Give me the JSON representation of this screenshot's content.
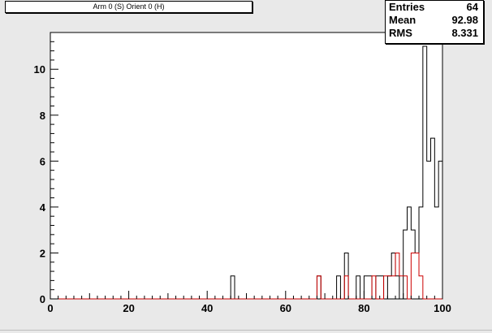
{
  "histogram": {
    "title": "Arm 0 (S) Orient 0 (H)"
  },
  "stats": {
    "entries_label": "Entries",
    "entries_value": "64",
    "mean_label": "Mean",
    "mean_value": "92.98",
    "rms_label": "RMS",
    "rms_value": "8.331"
  },
  "chart_data": {
    "type": "histogram",
    "title": "Arm 0 (S) Orient 0 (H)",
    "xlim": [
      0,
      100
    ],
    "ylim": [
      0,
      11.6
    ],
    "x_ticks": [
      "0",
      "20",
      "40",
      "60",
      "80",
      "100"
    ],
    "y_ticks": [
      "0",
      "2",
      "4",
      "6",
      "8",
      "10"
    ],
    "bin_width": 1,
    "series": [
      {
        "color": "#000000",
        "bins": [
          {
            "x": 46,
            "y": 1
          },
          {
            "x": 68,
            "y": 1
          },
          {
            "x": 73,
            "y": 1
          },
          {
            "x": 75,
            "y": 2
          },
          {
            "x": 78,
            "y": 1
          },
          {
            "x": 80,
            "y": 1
          },
          {
            "x": 81,
            "y": 1
          },
          {
            "x": 83,
            "y": 1
          },
          {
            "x": 84,
            "y": 1
          },
          {
            "x": 86,
            "y": 1
          },
          {
            "x": 87,
            "y": 2
          },
          {
            "x": 88,
            "y": 1
          },
          {
            "x": 90,
            "y": 3
          },
          {
            "x": 91,
            "y": 4
          },
          {
            "x": 92,
            "y": 3
          },
          {
            "x": 93,
            "y": 2
          },
          {
            "x": 94,
            "y": 4
          },
          {
            "x": 95,
            "y": 11
          },
          {
            "x": 96,
            "y": 6
          },
          {
            "x": 97,
            "y": 7
          },
          {
            "x": 98,
            "y": 4
          },
          {
            "x": 99,
            "y": 6
          }
        ]
      },
      {
        "color": "#cc0000",
        "bins": [
          {
            "x": 68,
            "y": 1
          },
          {
            "x": 75,
            "y": 1
          },
          {
            "x": 82,
            "y": 1
          },
          {
            "x": 85,
            "y": 1
          },
          {
            "x": 86,
            "y": 1
          },
          {
            "x": 87,
            "y": 1
          },
          {
            "x": 88,
            "y": 2
          },
          {
            "x": 89,
            "y": 1
          },
          {
            "x": 90,
            "y": 1
          },
          {
            "x": 92,
            "y": 2
          },
          {
            "x": 93,
            "y": 2
          },
          {
            "x": 94,
            "y": 1
          }
        ]
      }
    ]
  }
}
